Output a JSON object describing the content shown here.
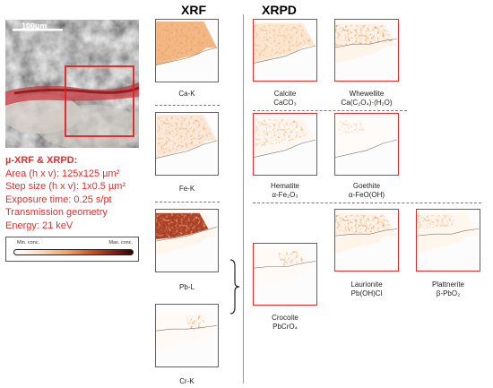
{
  "headers": {
    "xrf": "XRF",
    "xrpd": "XRPD"
  },
  "micrograph": {
    "scale_label": "100µm"
  },
  "info": {
    "title": "µ-XRF & XRPD:",
    "lines": [
      "Area (h x v): 125x125 µm²",
      "Step size (h x v): 1x0.5 µm²",
      "Exposure time: 0.25 s/pt",
      "Transmission geometry",
      "Energy: 21 keV"
    ]
  },
  "colorbar": {
    "min_label": "Min. conc.",
    "max_label": "Max. conc."
  },
  "xrf_maps": [
    {
      "label": "Ca-K"
    },
    {
      "label": "Fe-K"
    },
    {
      "label": "Pb-L"
    },
    {
      "label": "Cr-K"
    }
  ],
  "xrpd_maps": [
    {
      "name": "Calcite",
      "formula": "CaCO₃"
    },
    {
      "name": "Whewellite",
      "formula": "Ca(C₂O₄)·(H₂O)"
    },
    {
      "name": "Hematite",
      "formula": "α-Fe₂O₃"
    },
    {
      "name": "Goethite",
      "formula": "α-FeO(OH)"
    },
    {
      "name": "Crocoite",
      "formula": "PbCrO₄"
    },
    {
      "name": "Laurionite",
      "formula": "Pb(OH)Cl"
    },
    {
      "name": "Plattnerite",
      "formula": "β-PbO₂"
    }
  ],
  "colors": {
    "accent": "#d93030",
    "divider": "#7a7a7a"
  }
}
